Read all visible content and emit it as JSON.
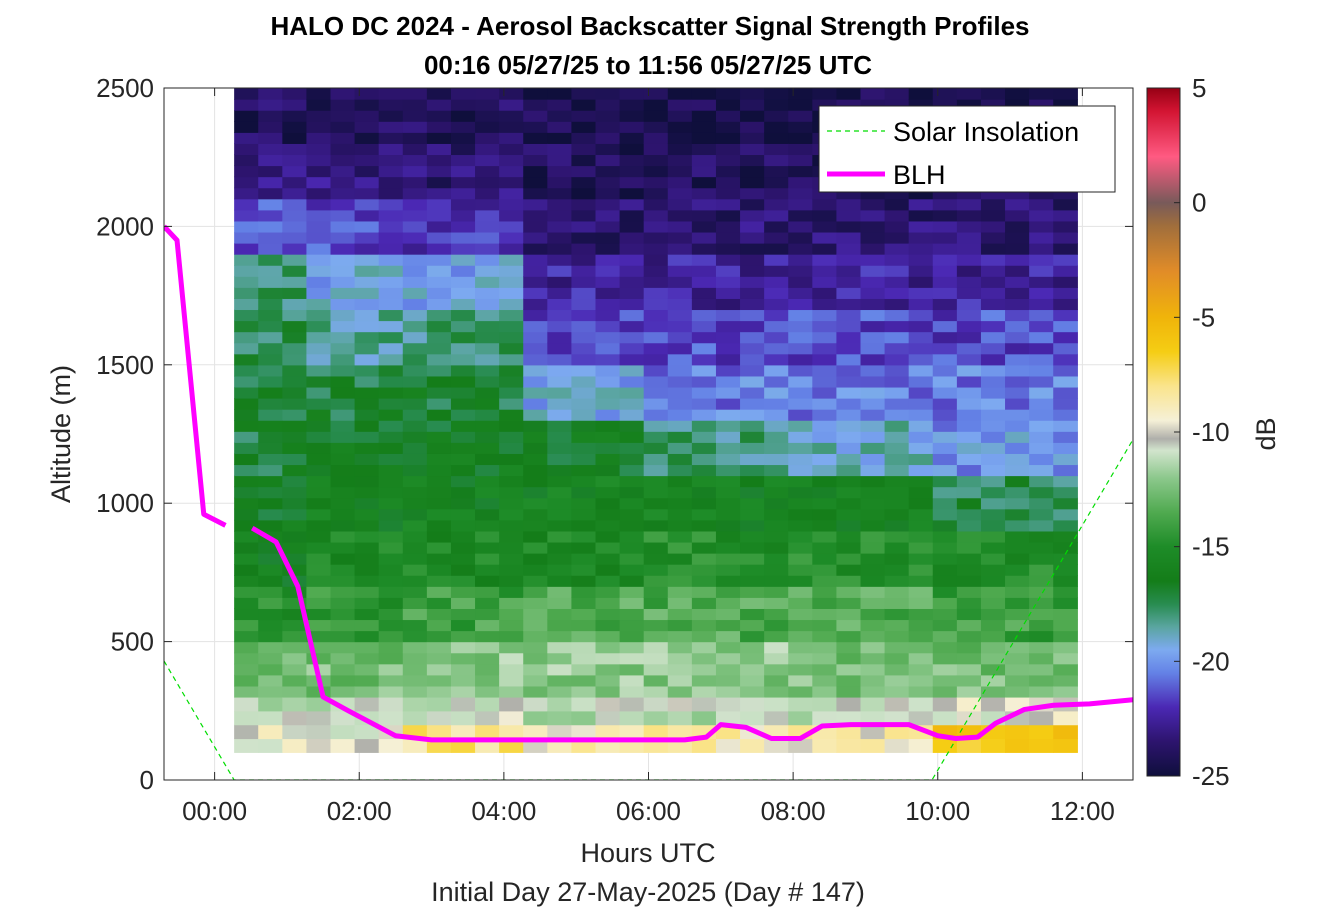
{
  "chart_data": {
    "type": "heatmap",
    "title": "HALO DC 2024 - Aerosol Backscatter Signal Strength Profiles",
    "subtitle": "00:16 05/27/25 to 11:56 05/27/25  UTC",
    "xlabel": "Hours UTC",
    "ylabel": "Altitude (m)",
    "footer": "Initial Day 27-May-2025 (Day # 147)",
    "xlim": [
      -0.7,
      12.7
    ],
    "ylim": [
      0,
      2500
    ],
    "x_ticks": [
      {
        "value": 0,
        "label": "00:00"
      },
      {
        "value": 2,
        "label": "02:00"
      },
      {
        "value": 4,
        "label": "04:00"
      },
      {
        "value": 6,
        "label": "06:00"
      },
      {
        "value": 8,
        "label": "08:00"
      },
      {
        "value": 10,
        "label": "10:00"
      },
      {
        "value": 12,
        "label": "12:00"
      }
    ],
    "y_ticks": [
      {
        "value": 0,
        "label": "0"
      },
      {
        "value": 500,
        "label": "500"
      },
      {
        "value": 1000,
        "label": "1000"
      },
      {
        "value": 1500,
        "label": "1500"
      },
      {
        "value": 2000,
        "label": "2000"
      },
      {
        "value": 2500,
        "label": "2500"
      }
    ],
    "grid": true,
    "colorbar": {
      "label": "dB",
      "range": [
        -25,
        5
      ],
      "ticks": [
        {
          "value": 5,
          "label": "5"
        },
        {
          "value": 0,
          "label": "0"
        },
        {
          "value": -5,
          "label": "-5"
        },
        {
          "value": -10,
          "label": "-10"
        },
        {
          "value": -15,
          "label": "-15"
        },
        {
          "value": -20,
          "label": "-20"
        },
        {
          "value": -25,
          "label": "-25"
        }
      ]
    },
    "heatmap": {
      "x_start": 0.27,
      "x_end": 11.93,
      "columns": 35,
      "altitude_levels_m": [
        100,
        200,
        300,
        500,
        700,
        900,
        1100,
        1300,
        1500,
        1700,
        1900,
        2100,
        2300,
        2500
      ],
      "profiles_db": [
        {
          "from_h": 0.27,
          "to_h": 1.3,
          "db": [
            -6,
            -10,
            -11,
            -13,
            -15,
            -16,
            -16.5,
            -17,
            -17,
            -17.5,
            -18,
            -21,
            -23,
            -24
          ]
        },
        {
          "from_h": 1.3,
          "to_h": 2.7,
          "db": [
            -5.5,
            -10,
            -11,
            -12.5,
            -14.5,
            -15.5,
            -16,
            -16.5,
            -17,
            -18.5,
            -19.5,
            -21.5,
            -23,
            -24
          ]
        },
        {
          "from_h": 2.7,
          "to_h": 4.3,
          "db": [
            -6,
            -8,
            -10.5,
            -12,
            -14,
            -15.5,
            -16,
            -16.5,
            -17,
            -18,
            -19.5,
            -22,
            -23.5,
            -24
          ]
        },
        {
          "from_h": 4.3,
          "to_h": 6.0,
          "db": [
            -6,
            -9,
            -11,
            -12,
            -13.5,
            -15.5,
            -16,
            -16.5,
            -19.5,
            -21.5,
            -22.5,
            -23.5,
            -24,
            -24.5
          ]
        },
        {
          "from_h": 6.0,
          "to_h": 8.0,
          "db": [
            -6,
            -9,
            -11,
            -12,
            -13.5,
            -15,
            -16,
            -18,
            -20.5,
            -21.5,
            -22.5,
            -23.5,
            -24,
            -24.5
          ]
        },
        {
          "from_h": 8.0,
          "to_h": 10.0,
          "db": [
            -6,
            -9,
            -11,
            -12.5,
            -13.5,
            -15,
            -16,
            -19,
            -20.5,
            -21.5,
            -22.5,
            -23.5,
            -24,
            -24.5
          ]
        },
        {
          "from_h": 10.0,
          "to_h": 11.93,
          "db": [
            -5.5,
            -6,
            -10,
            -12.5,
            -14,
            -15,
            -17.5,
            -20,
            -20.5,
            -21.5,
            -22.5,
            -23.5,
            -24,
            -24.5
          ]
        }
      ]
    },
    "series": [
      {
        "name": "Solar Insolation",
        "style": "dashed",
        "color": "#00dd00",
        "segments": [
          [
            [
              -0.7,
              430
            ],
            [
              0.27,
              0
            ],
            [
              9.92,
              0
            ],
            [
              12.7,
              1230
            ]
          ]
        ]
      },
      {
        "name": "BLH",
        "style": "solid",
        "color": "#ff00ff",
        "segments": [
          [
            [
              -0.7,
              2000
            ],
            [
              -0.52,
              1950
            ],
            [
              -0.15,
              960
            ],
            [
              0.15,
              920
            ]
          ],
          [
            [
              0.52,
              910
            ],
            [
              0.85,
              860
            ],
            [
              1.15,
              700
            ],
            [
              1.5,
              300
            ],
            [
              1.85,
              250
            ],
            [
              2.5,
              160
            ],
            [
              3.0,
              145
            ],
            [
              4.0,
              145
            ],
            [
              5.0,
              145
            ],
            [
              6.0,
              145
            ],
            [
              6.5,
              145
            ],
            [
              6.8,
              155
            ],
            [
              7.0,
              200
            ],
            [
              7.35,
              190
            ],
            [
              7.7,
              150
            ],
            [
              8.1,
              150
            ],
            [
              8.4,
              195
            ],
            [
              8.8,
              200
            ],
            [
              9.3,
              200
            ],
            [
              9.6,
              200
            ],
            [
              10.0,
              160
            ],
            [
              10.25,
              150
            ],
            [
              10.55,
              155
            ],
            [
              10.8,
              205
            ],
            [
              11.2,
              255
            ],
            [
              11.6,
              270
            ],
            [
              12.1,
              275
            ],
            [
              12.7,
              290
            ]
          ]
        ]
      }
    ],
    "legend": {
      "position": "top-right",
      "entries": [
        "Solar Insolation",
        "BLH"
      ]
    },
    "colors": {
      "solar": "#00dd00",
      "blh": "#ff00ff",
      "grid": "#e3e3e3",
      "axis": "#262626"
    }
  }
}
